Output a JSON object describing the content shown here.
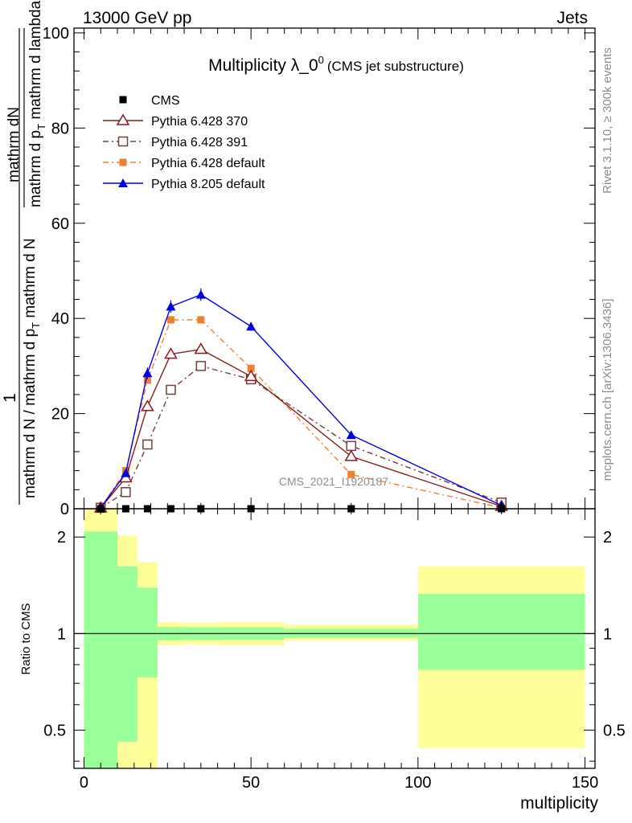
{
  "header": {
    "left": "13000 GeV pp",
    "right": "Jets"
  },
  "side_labels": {
    "rivet": "Rivet 3.1.10, ≥ 300k events",
    "mcplots": "mcplots.cern.ch [arXiv:1306.3436]"
  },
  "chart_data": {
    "type": "line",
    "title": "Multiplicity λ_0^0",
    "title_base": "Multiplicity λ_0",
    "title_sup": "0",
    "subtitle": "(CMS jet substructure)",
    "watermark": "CMS_2021_I1920187",
    "xlabel": "multiplicity",
    "ylabel_top": "1",
    "ylabel_num": "mathrm dN",
    "ylabel_num_rest": "mathrm d p",
    "ylabel_num_sub": "T",
    "ylabel_num_tail": " mathrm d lambda",
    "ylabel_den": "mathrm d N / mathrm d p",
    "ylabel_den_sub": "T",
    "ylabel_den_tail": " mathrm d N",
    "xlim": [
      -3,
      153
    ],
    "ylim": [
      0,
      101
    ],
    "xticks": [
      0,
      50,
      100,
      150
    ],
    "yticks": [
      0,
      20,
      40,
      60,
      80,
      100
    ],
    "series": [
      {
        "name": "CMS",
        "color": "#000000",
        "marker": "square-filled",
        "line": "none",
        "x": [
          5,
          12.5,
          19,
          26,
          35,
          50,
          80,
          125
        ],
        "y": [
          0,
          0,
          0,
          0,
          0,
          0,
          0,
          0
        ]
      },
      {
        "name": "Pythia 6.428 370",
        "color": "#8b1a1a",
        "marker": "triangle-open",
        "line": "solid",
        "x": [
          5,
          12.5,
          19,
          26,
          35,
          50,
          80,
          125
        ],
        "y": [
          0.2,
          6.5,
          21.5,
          32.5,
          33.5,
          27.8,
          11.0,
          0.5
        ],
        "err": [
          0,
          0.6,
          0.8,
          0.9,
          0.9,
          0.8,
          0.5,
          0.2
        ]
      },
      {
        "name": "Pythia 6.428 391",
        "color": "#704040",
        "marker": "square-open",
        "line": "dashdot",
        "x": [
          5,
          12.5,
          19,
          26,
          35,
          50,
          80,
          125
        ],
        "y": [
          0.2,
          3.5,
          13.5,
          25.0,
          30.0,
          27.2,
          13.2,
          1.3
        ],
        "err": [
          0,
          0.4,
          0.6,
          0.7,
          0.8,
          0.7,
          0.5,
          0.2
        ]
      },
      {
        "name": "Pythia 6.428 default",
        "color": "#f08030",
        "marker": "square-filled",
        "line": "dashdot",
        "x": [
          5,
          12.5,
          19,
          26,
          35,
          50,
          80,
          125
        ],
        "y": [
          0.2,
          8.0,
          27.0,
          39.7,
          39.7,
          29.5,
          7.2,
          0.2
        ],
        "err": [
          0,
          0.5,
          0.7,
          0.8,
          0.8,
          0.7,
          0.4,
          0.1
        ]
      },
      {
        "name": "Pythia 8.205 default",
        "color": "#0000e0",
        "marker": "triangle-filled",
        "line": "solid",
        "x": [
          5,
          12.5,
          19,
          26,
          35,
          50,
          80,
          125
        ],
        "y": [
          0.2,
          7.5,
          28.5,
          42.5,
          45.0,
          38.3,
          15.5,
          0.7
        ],
        "err": [
          0,
          0.8,
          1.2,
          1.3,
          1.3,
          0.9,
          0.6,
          0.2
        ]
      }
    ],
    "ratio": {
      "ylabel": "Ratio to CMS",
      "ylim": [
        0.38,
        2.45
      ],
      "yscale": "log",
      "yticks": [
        0.5,
        1,
        2
      ],
      "ytick_labels": [
        "0.5",
        "1",
        "2"
      ],
      "colors": {
        "inner": "#99ff99",
        "outer": "#ffff99"
      },
      "bins": [
        {
          "x0": 0,
          "x1": 10,
          "inner": [
            0.38,
            2.08
          ],
          "outer": [
            0.38,
            2.45
          ]
        },
        {
          "x0": 10,
          "x1": 16,
          "inner": [
            0.46,
            1.62
          ],
          "outer": [
            0.38,
            2.02
          ]
        },
        {
          "x0": 16,
          "x1": 22,
          "inner": [
            0.73,
            1.39
          ],
          "outer": [
            0.38,
            1.67
          ]
        },
        {
          "x0": 22,
          "x1": 30,
          "inner": [
            0.953,
            1.048
          ],
          "outer": [
            0.92,
            1.085
          ]
        },
        {
          "x0": 30,
          "x1": 40,
          "inner": [
            0.955,
            1.046
          ],
          "outer": [
            0.925,
            1.08
          ]
        },
        {
          "x0": 40,
          "x1": 60,
          "inner": [
            0.957,
            1.046
          ],
          "outer": [
            0.92,
            1.085
          ]
        },
        {
          "x0": 60,
          "x1": 100,
          "inner": [
            0.97,
            1.035
          ],
          "outer": [
            0.95,
            1.065
          ]
        },
        {
          "x0": 100,
          "x1": 150,
          "inner": [
            0.77,
            1.33
          ],
          "outer": [
            0.44,
            1.62
          ]
        }
      ]
    }
  }
}
